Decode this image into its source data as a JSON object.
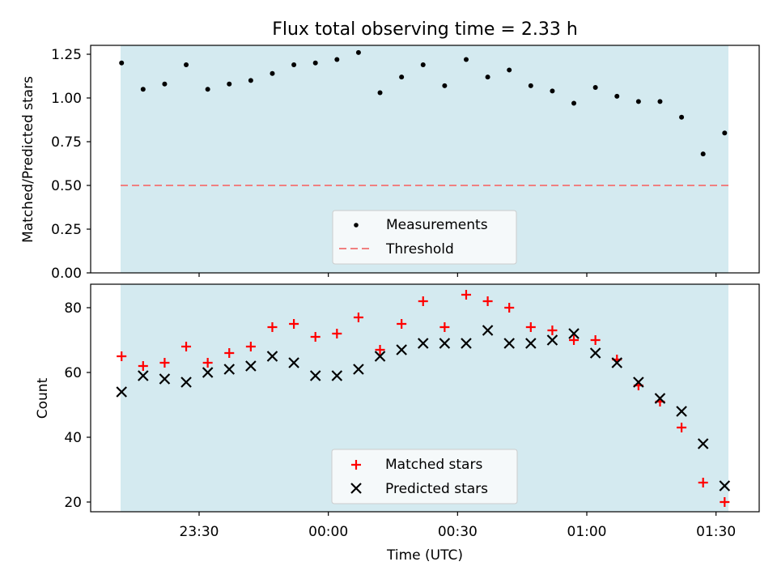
{
  "chart_data": [
    {
      "type": "scatter",
      "title": "Flux total observing time = 2.33 h",
      "ylabel": "Matched/Predicted stars",
      "xlabel": "",
      "ylim": [
        0,
        1.3
      ],
      "yticks": [
        "0.00",
        "0.25",
        "0.50",
        "0.75",
        "1.00",
        "1.25"
      ],
      "shaded_span": true,
      "legend": {
        "position": "lower-center",
        "entries": [
          "Measurements",
          "Threshold"
        ]
      },
      "threshold": 0.5,
      "series": [
        {
          "name": "Measurements",
          "x": [
            "23:12",
            "23:17",
            "23:22",
            "23:27",
            "23:32",
            "23:37",
            "23:42",
            "23:47",
            "23:52",
            "23:57",
            "00:02",
            "00:07",
            "00:12",
            "00:17",
            "00:22",
            "00:27",
            "00:32",
            "00:37",
            "00:42",
            "00:47",
            "00:52",
            "00:57",
            "01:02",
            "01:07",
            "01:12",
            "01:17",
            "01:22",
            "01:27",
            "01:32"
          ],
          "y": [
            1.2,
            1.05,
            1.08,
            1.19,
            1.05,
            1.08,
            1.1,
            1.14,
            1.19,
            1.2,
            1.22,
            1.26,
            1.03,
            1.12,
            1.19,
            1.07,
            1.22,
            1.12,
            1.16,
            1.07,
            1.04,
            0.97,
            1.06,
            1.01,
            0.98,
            0.98,
            0.89,
            0.68,
            0.8
          ]
        }
      ]
    },
    {
      "type": "scatter",
      "title": "",
      "ylabel": "Count",
      "xlabel": "Time (UTC)",
      "ylim": [
        17,
        87
      ],
      "yticks": [
        "20",
        "40",
        "60",
        "80"
      ],
      "xticks": [
        "23:30",
        "00:00",
        "00:30",
        "01:00",
        "01:30"
      ],
      "shaded_span": true,
      "legend": {
        "position": "lower-center",
        "entries": [
          "Matched stars",
          "Predicted stars"
        ]
      },
      "series": [
        {
          "name": "Matched stars",
          "color": "#ff0000",
          "marker": "+",
          "x": [
            "23:12",
            "23:17",
            "23:22",
            "23:27",
            "23:32",
            "23:37",
            "23:42",
            "23:47",
            "23:52",
            "23:57",
            "00:02",
            "00:07",
            "00:12",
            "00:17",
            "00:22",
            "00:27",
            "00:32",
            "00:37",
            "00:42",
            "00:47",
            "00:52",
            "00:57",
            "01:02",
            "01:07",
            "01:12",
            "01:17",
            "01:22",
            "01:27",
            "01:32"
          ],
          "y": [
            65,
            62,
            63,
            68,
            63,
            66,
            68,
            74,
            75,
            71,
            72,
            77,
            67,
            75,
            82,
            74,
            84,
            82,
            80,
            74,
            73,
            70,
            70,
            64,
            56,
            51,
            43,
            26,
            20
          ]
        },
        {
          "name": "Predicted stars",
          "color": "#000000",
          "marker": "x",
          "x": [
            "23:12",
            "23:17",
            "23:22",
            "23:27",
            "23:32",
            "23:37",
            "23:42",
            "23:47",
            "23:52",
            "23:57",
            "00:02",
            "00:07",
            "00:12",
            "00:17",
            "00:22",
            "00:27",
            "00:32",
            "00:37",
            "00:42",
            "00:47",
            "00:52",
            "00:57",
            "01:02",
            "01:07",
            "01:12",
            "01:17",
            "01:22",
            "01:27",
            "01:32"
          ],
          "y": [
            54,
            59,
            58,
            57,
            60,
            61,
            62,
            65,
            63,
            59,
            59,
            61,
            65,
            67,
            69,
            69,
            69,
            73,
            69,
            69,
            70,
            72,
            66,
            63,
            57,
            52,
            48,
            38,
            25
          ]
        }
      ]
    }
  ],
  "colors": {
    "span": "#d4eaf0",
    "threshold": "#f08080",
    "matched": "#ff0000",
    "predicted": "#000000",
    "measurement": "#000000"
  }
}
